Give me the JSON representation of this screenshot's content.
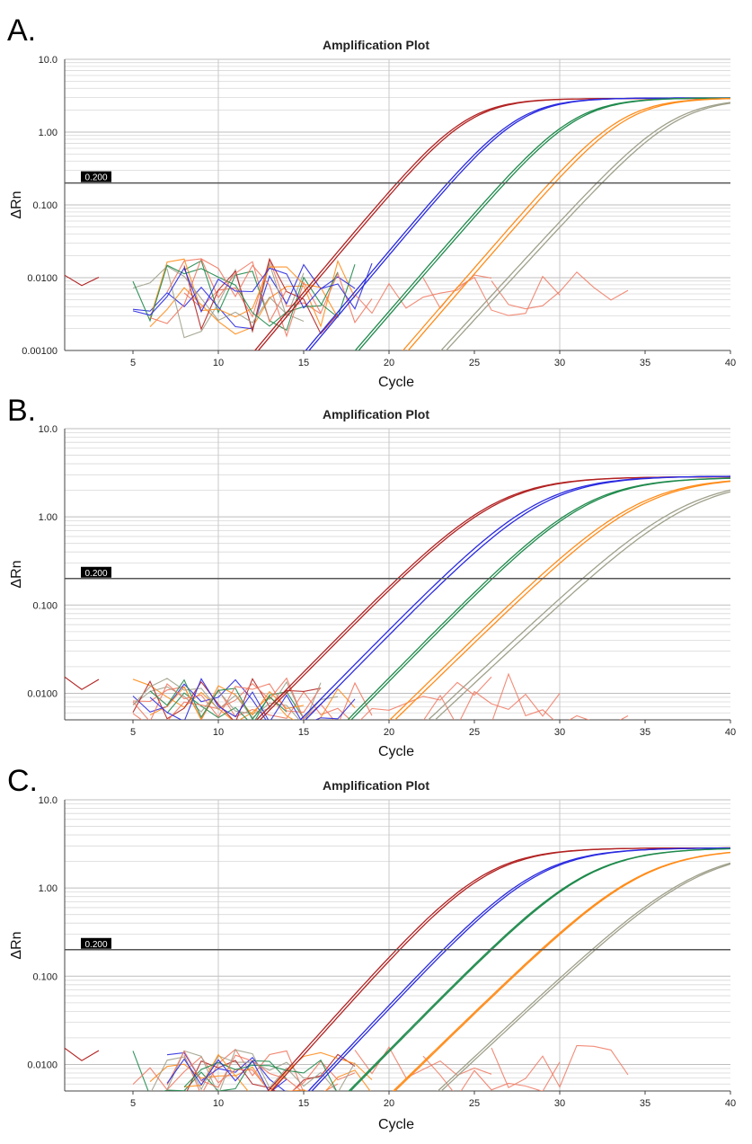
{
  "figure": {
    "panels": [
      {
        "letter": "A.",
        "title": "Amplification Plot",
        "xlabel": "Cycle",
        "ylabel": "ΔRn",
        "y_ticks": [
          "10.0",
          "1.00",
          "0.100",
          "0.0100",
          "0.00100"
        ],
        "x_ticks": [
          "5",
          "10",
          "15",
          "20",
          "25",
          "30",
          "35",
          "40"
        ],
        "threshold_label": "0.200"
      },
      {
        "letter": "B.",
        "title": "Amplification Plot",
        "xlabel": "Cycle",
        "ylabel": "ΔRn",
        "y_ticks": [
          "10.0",
          "1.00",
          "0.100",
          "0.0100"
        ],
        "x_ticks": [
          "5",
          "10",
          "15",
          "20",
          "25",
          "30",
          "35",
          "40"
        ],
        "threshold_label": "0.200"
      },
      {
        "letter": "C.",
        "title": "Amplification Plot",
        "xlabel": "Cycle",
        "ylabel": "ΔRn",
        "y_ticks": [
          "10.0",
          "1.00",
          "0.100",
          "0.0100"
        ],
        "x_ticks": [
          "5",
          "10",
          "15",
          "20",
          "25",
          "30",
          "35",
          "40"
        ],
        "threshold_label": "0.200"
      }
    ]
  },
  "colors": {
    "red": "#b22222",
    "blue": "#2a2ae0",
    "green": "#1f8a4c",
    "orange": "#ff8c1a",
    "gray": "#a0a08c",
    "salmon": "#f07860",
    "threshold": "#555555",
    "grid": "#d8d8d8"
  },
  "chart_data": [
    {
      "type": "line",
      "title": "Amplification Plot",
      "xlabel": "Cycle",
      "ylabel": "ΔRn",
      "yscale": "log",
      "xlim": [
        1,
        40
      ],
      "ylim": [
        0.001,
        10
      ],
      "threshold": 0.2,
      "series": [
        {
          "name": "red-1",
          "color": "red",
          "plateau": 2.9,
          "mid": 24.5,
          "slope": 1.55
        },
        {
          "name": "red-2",
          "color": "red",
          "plateau": 2.9,
          "mid": 24.7,
          "slope": 1.55
        },
        {
          "name": "blue-1",
          "color": "blue",
          "plateau": 2.95,
          "mid": 27.5,
          "slope": 1.55
        },
        {
          "name": "blue-2",
          "color": "blue",
          "plateau": 2.95,
          "mid": 27.7,
          "slope": 1.55
        },
        {
          "name": "green-1",
          "color": "green",
          "plateau": 2.95,
          "mid": 30.8,
          "slope": 1.6
        },
        {
          "name": "green-2",
          "color": "green",
          "plateau": 2.95,
          "mid": 31.0,
          "slope": 1.6
        },
        {
          "name": "orange-1",
          "color": "orange",
          "plateau": 2.95,
          "mid": 33.6,
          "slope": 1.6
        },
        {
          "name": "orange-2",
          "color": "orange",
          "plateau": 2.95,
          "mid": 33.9,
          "slope": 1.6
        },
        {
          "name": "gray-1",
          "color": "gray",
          "plateau": 2.9,
          "mid": 36.6,
          "slope": 1.7
        },
        {
          "name": "gray-2",
          "color": "gray",
          "plateau": 2.9,
          "mid": 36.9,
          "slope": 1.7
        }
      ]
    },
    {
      "type": "line",
      "title": "Amplification Plot",
      "xlabel": "Cycle",
      "ylabel": "ΔRn",
      "yscale": "log",
      "xlim": [
        1,
        40
      ],
      "ylim": [
        0.005,
        10
      ],
      "threshold": 0.2,
      "series": [
        {
          "name": "red-1",
          "color": "red",
          "plateau": 2.85,
          "mid": 26.2,
          "slope": 2.2
        },
        {
          "name": "red-2",
          "color": "red",
          "plateau": 2.85,
          "mid": 26.4,
          "slope": 2.2
        },
        {
          "name": "blue-1",
          "color": "blue",
          "plateau": 2.9,
          "mid": 28.8,
          "slope": 2.2
        },
        {
          "name": "blue-2",
          "color": "blue",
          "plateau": 2.9,
          "mid": 29.1,
          "slope": 2.2
        },
        {
          "name": "green-1",
          "color": "green",
          "plateau": 2.8,
          "mid": 31.5,
          "slope": 2.2
        },
        {
          "name": "green-2",
          "color": "green",
          "plateau": 2.8,
          "mid": 31.7,
          "slope": 2.2
        },
        {
          "name": "orange-1",
          "color": "orange",
          "plateau": 2.8,
          "mid": 34.6,
          "slope": 2.3
        },
        {
          "name": "orange-2",
          "color": "orange",
          "plateau": 2.8,
          "mid": 34.9,
          "slope": 2.3
        },
        {
          "name": "gray-1",
          "color": "gray",
          "plateau": 2.7,
          "mid": 37.4,
          "slope": 2.4
        },
        {
          "name": "gray-2",
          "color": "gray",
          "plateau": 2.7,
          "mid": 37.8,
          "slope": 2.4
        }
      ]
    },
    {
      "type": "line",
      "title": "Amplification Plot",
      "xlabel": "Cycle",
      "ylabel": "ΔRn",
      "yscale": "log",
      "xlim": [
        1,
        40
      ],
      "ylim": [
        0.005,
        10
      ],
      "threshold": 0.2,
      "series": [
        {
          "name": "red-1",
          "color": "red",
          "plateau": 2.85,
          "mid": 25.6,
          "slope": 2.0
        },
        {
          "name": "red-2",
          "color": "red",
          "plateau": 2.85,
          "mid": 25.8,
          "slope": 2.0
        },
        {
          "name": "blue-1",
          "color": "blue",
          "plateau": 2.85,
          "mid": 28.6,
          "slope": 2.1
        },
        {
          "name": "blue-2",
          "color": "blue",
          "plateau": 2.85,
          "mid": 28.8,
          "slope": 2.1
        },
        {
          "name": "green-1",
          "color": "green",
          "plateau": 2.85,
          "mid": 31.6,
          "slope": 2.2
        },
        {
          "name": "green-2",
          "color": "green",
          "plateau": 2.85,
          "mid": 31.7,
          "slope": 2.2
        },
        {
          "name": "orange-1",
          "color": "orange",
          "plateau": 2.8,
          "mid": 34.8,
          "slope": 2.3
        },
        {
          "name": "orange-2",
          "color": "orange",
          "plateau": 2.8,
          "mid": 34.9,
          "slope": 2.3
        },
        {
          "name": "gray-1",
          "color": "gray",
          "plateau": 2.75,
          "mid": 38.0,
          "slope": 2.4
        },
        {
          "name": "gray-2",
          "color": "gray",
          "plateau": 2.75,
          "mid": 38.2,
          "slope": 2.4
        }
      ]
    }
  ]
}
